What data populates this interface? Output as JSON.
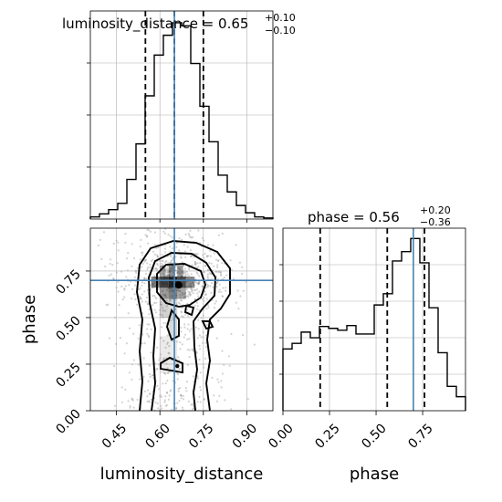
{
  "chart_data": {
    "type": "corner",
    "parameters": [
      "luminosity_distance",
      "phase"
    ],
    "truths": {
      "luminosity_distance": 0.65,
      "phase": 0.7
    },
    "colors": {
      "truth_line": "#4682b4",
      "hist": "#000000",
      "grid": "#b0b0b0",
      "points": "#808080"
    },
    "panels": {
      "hist_luminosity_distance": {
        "title": {
          "main": "luminosity_distance = 0.65",
          "sup": "+0.10",
          "sub": "−0.10"
        },
        "xlim": [
          0.36,
          0.99
        ],
        "quantiles": [
          0.55,
          0.65,
          0.75
        ],
        "bin_edges": [
          0.36,
          0.3915,
          0.423,
          0.4545,
          0.486,
          0.5175,
          0.549,
          0.5805,
          0.612,
          0.6435,
          0.675,
          0.7065,
          0.738,
          0.7695,
          0.801,
          0.8325,
          0.864,
          0.8955,
          0.927,
          0.9585,
          0.99
        ],
        "counts": [
          2,
          5,
          9,
          15,
          38,
          72,
          118,
          157,
          176,
          188,
          185,
          149,
          108,
          74,
          42,
          26,
          13,
          6,
          2,
          1
        ]
      },
      "hist_phase": {
        "title": {
          "main": "phase = 0.56",
          "sup": "+0.20",
          "sub": "−0.36"
        },
        "xlim": [
          0.0,
          0.98
        ],
        "quantiles": [
          0.2,
          0.56,
          0.76
        ],
        "xticks": [
          "0.00",
          "0.25",
          "0.50",
          "0.75"
        ],
        "xtick_values": [
          0.0,
          0.25,
          0.5,
          0.75
        ],
        "xlabel": "phase",
        "bin_edges": [
          0.0,
          0.049,
          0.098,
          0.147,
          0.196,
          0.245,
          0.294,
          0.343,
          0.392,
          0.441,
          0.49,
          0.539,
          0.588,
          0.637,
          0.686,
          0.735,
          0.784,
          0.833,
          0.882,
          0.931,
          0.98
        ],
        "counts": [
          66,
          72,
          84,
          78,
          90,
          88,
          86,
          91,
          82,
          82,
          113,
          125,
          160,
          170,
          184,
          158,
          110,
          62,
          26,
          15
        ]
      },
      "scatter_2d": {
        "xlim": [
          0.36,
          0.99
        ],
        "ylim": [
          0.0,
          0.98
        ],
        "xticks": [
          "0.45",
          "0.60",
          "0.75",
          "0.90"
        ],
        "xtick_values": [
          0.45,
          0.6,
          0.75,
          0.9
        ],
        "yticks": [
          "0.00",
          "0.25",
          "0.50",
          "0.75"
        ],
        "ytick_values": [
          0.0,
          0.25,
          0.5,
          0.75
        ],
        "xlabel": "luminosity_distance",
        "ylabel": "phase",
        "peak": {
          "x": 0.665,
          "y": 0.675
        }
      }
    }
  }
}
